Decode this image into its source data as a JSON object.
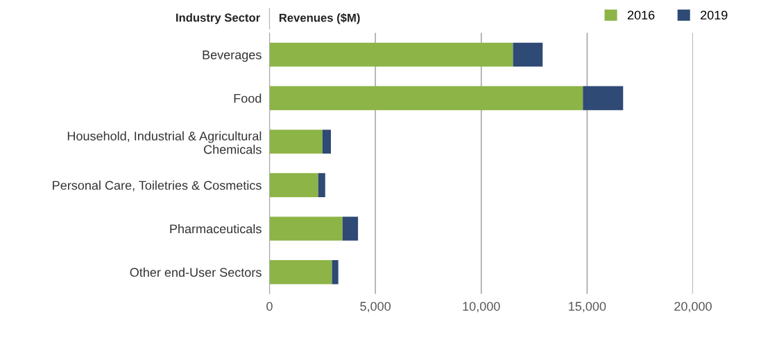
{
  "chart_data": {
    "type": "bar",
    "orientation": "horizontal",
    "stacked": true,
    "ylabel": "Industry Sector",
    "xlabel": "Revenues ($M)",
    "categories": [
      "Beverages",
      "Food",
      "Household, Industrial & Agricultural\nChemicals",
      "Personal Care, Toiletries & Cosmetics",
      "Pharmaceuticals",
      "Other end-User Sectors"
    ],
    "series": [
      {
        "name": "2016",
        "color": "#8db446",
        "values": [
          11500,
          14800,
          2500,
          2300,
          3450,
          2950
        ]
      },
      {
        "name": "2019",
        "color": "#2f4a74",
        "values": [
          1400,
          1900,
          400,
          330,
          730,
          300
        ]
      }
    ],
    "xlim": [
      0,
      20000
    ],
    "xticks": [
      0,
      {
        "value": 5000,
        "label": "5,000"
      },
      {
        "value": 10000,
        "label": "10,000"
      },
      {
        "value": 15000,
        "label": "15,000"
      },
      {
        "value": 20000,
        "label": "20,000"
      }
    ],
    "grid": "x",
    "legend": "top right"
  }
}
